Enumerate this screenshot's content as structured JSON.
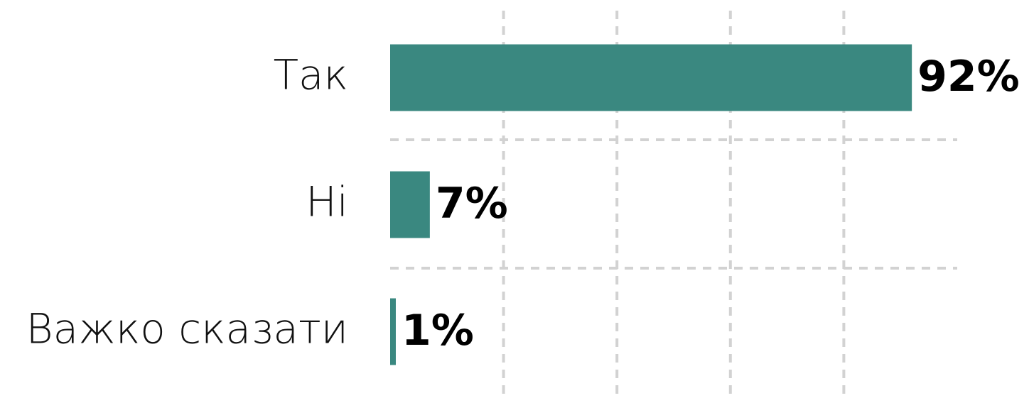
{
  "chart_data": {
    "type": "bar",
    "orientation": "horizontal",
    "categories": [
      "Так",
      "Ні",
      "Важко сказати"
    ],
    "values": [
      92,
      7,
      1
    ],
    "value_labels": [
      "92%",
      "7%",
      "1%"
    ],
    "color": "#3a8880",
    "xlim": [
      0,
      100
    ],
    "xticks": [
      20,
      40,
      60,
      80
    ],
    "grid": true
  }
}
